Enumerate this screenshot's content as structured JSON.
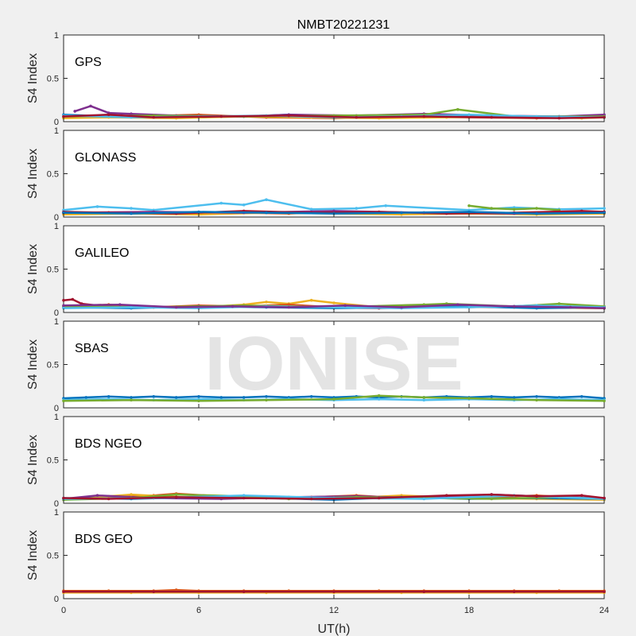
{
  "chart_data": {
    "type": "scatter",
    "title": "NMBT20221231",
    "xlabel": "UT(h)",
    "ylabel": "S4 Index",
    "xlim": [
      0,
      24
    ],
    "ylim": [
      0,
      1
    ],
    "xticks": [
      0,
      6,
      12,
      18,
      24
    ],
    "yticks": [
      0,
      0.5,
      1
    ],
    "ytick_labels": [
      "0",
      "0.5",
      "1"
    ],
    "grid": false,
    "watermark": "IONISE",
    "series_colors": [
      "#0072BD",
      "#D95319",
      "#EDB120",
      "#7E2F8E",
      "#77AC30",
      "#4DBEEE",
      "#A2142F"
    ],
    "panels": [
      {
        "label": "GPS",
        "tracks": [
          {
            "color": "#0072BD",
            "x": [
              0,
              2,
              4,
              6,
              8,
              10,
              12,
              14,
              16,
              18,
              20,
              22,
              24
            ],
            "y": [
              0.08,
              0.06,
              0.07,
              0.05,
              0.06,
              0.08,
              0.06,
              0.05,
              0.07,
              0.06,
              0.05,
              0.06,
              0.07
            ]
          },
          {
            "color": "#D95319",
            "x": [
              0,
              3,
              6,
              9,
              12,
              15,
              18,
              21,
              24
            ],
            "y": [
              0.05,
              0.06,
              0.08,
              0.05,
              0.04,
              0.06,
              0.05,
              0.04,
              0.05
            ]
          },
          {
            "color": "#EDB120",
            "x": [
              0,
              2,
              5,
              8,
              11,
              14,
              17,
              20,
              23,
              24
            ],
            "y": [
              0.04,
              0.05,
              0.04,
              0.06,
              0.05,
              0.04,
              0.05,
              0.06,
              0.04,
              0.05
            ]
          },
          {
            "color": "#7E2F8E",
            "x": [
              0.5,
              1.2,
              2,
              3,
              5,
              8,
              10,
              13,
              16,
              19,
              22,
              24
            ],
            "y": [
              0.12,
              0.18,
              0.1,
              0.09,
              0.07,
              0.06,
              0.08,
              0.07,
              0.09,
              0.07,
              0.06,
              0.08
            ]
          },
          {
            "color": "#77AC30",
            "x": [
              0,
              4,
              8,
              12,
              16,
              17.5,
              20,
              24
            ],
            "y": [
              0.06,
              0.07,
              0.06,
              0.07,
              0.08,
              0.14,
              0.06,
              0.06
            ]
          },
          {
            "color": "#4DBEEE",
            "x": [
              0,
              3,
              6,
              9,
              12,
              15,
              18,
              21,
              24
            ],
            "y": [
              0.07,
              0.05,
              0.06,
              0.07,
              0.05,
              0.06,
              0.08,
              0.06,
              0.05
            ]
          },
          {
            "color": "#A2142F",
            "x": [
              0,
              2,
              4,
              7,
              10,
              13,
              16,
              19,
              22,
              24
            ],
            "y": [
              0.06,
              0.08,
              0.05,
              0.06,
              0.07,
              0.05,
              0.06,
              0.05,
              0.04,
              0.05
            ]
          }
        ]
      },
      {
        "label": "GLONASS",
        "tracks": [
          {
            "color": "#4DBEEE",
            "x": [
              0,
              1.5,
              3,
              4,
              7,
              8,
              9,
              11,
              13,
              14.3,
              18,
              20,
              22,
              24
            ],
            "y": [
              0.08,
              0.12,
              0.1,
              0.08,
              0.16,
              0.14,
              0.2,
              0.09,
              0.1,
              0.13,
              0.08,
              0.11,
              0.09,
              0.1
            ]
          },
          {
            "color": "#77AC30",
            "x": [
              18,
              19,
              20,
              21,
              22
            ],
            "y": [
              0.13,
              0.1,
              0.09,
              0.1,
              0.08
            ]
          },
          {
            "color": "#D95319",
            "x": [
              0,
              2,
              4,
              6,
              8,
              10,
              12,
              14,
              16,
              18,
              20,
              22,
              24
            ],
            "y": [
              0.04,
              0.05,
              0.06,
              0.04,
              0.05,
              0.04,
              0.06,
              0.04,
              0.05,
              0.04,
              0.05,
              0.06,
              0.04
            ]
          },
          {
            "color": "#EDB120",
            "x": [
              0,
              3,
              6,
              9,
              12,
              15,
              18,
              21,
              24
            ],
            "y": [
              0.03,
              0.04,
              0.03,
              0.05,
              0.04,
              0.03,
              0.04,
              0.03,
              0.04
            ]
          },
          {
            "color": "#7E2F8E",
            "x": [
              0,
              4,
              8,
              12,
              16,
              20,
              24
            ],
            "y": [
              0.05,
              0.06,
              0.05,
              0.07,
              0.05,
              0.04,
              0.06
            ]
          },
          {
            "color": "#A2142F",
            "x": [
              0,
              2,
              5,
              8,
              11,
              14,
              17,
              20,
              23,
              24
            ],
            "y": [
              0.06,
              0.05,
              0.04,
              0.07,
              0.05,
              0.06,
              0.04,
              0.05,
              0.07,
              0.06
            ]
          },
          {
            "color": "#0072BD",
            "x": [
              0,
              3,
              6,
              9,
              12,
              15,
              18,
              21,
              24
            ],
            "y": [
              0.05,
              0.04,
              0.06,
              0.05,
              0.04,
              0.05,
              0.06,
              0.04,
              0.05
            ]
          }
        ]
      },
      {
        "label": "GALILEO",
        "tracks": [
          {
            "color": "#A2142F",
            "x": [
              0,
              0.4,
              0.8,
              1.5,
              3,
              5,
              8,
              11,
              14,
              17,
              20,
              24
            ],
            "y": [
              0.14,
              0.15,
              0.1,
              0.08,
              0.07,
              0.06,
              0.07,
              0.06,
              0.05,
              0.07,
              0.06,
              0.05
            ]
          },
          {
            "color": "#EDB120",
            "x": [
              6,
              8,
              9,
              10,
              11,
              12,
              14,
              16,
              18,
              20,
              24
            ],
            "y": [
              0.06,
              0.09,
              0.12,
              0.1,
              0.14,
              0.11,
              0.06,
              0.07,
              0.08,
              0.06,
              0.05
            ]
          },
          {
            "color": "#D95319",
            "x": [
              0,
              2,
              4,
              6,
              8,
              10,
              12,
              14,
              16,
              18,
              20,
              22,
              24
            ],
            "y": [
              0.07,
              0.09,
              0.06,
              0.08,
              0.07,
              0.09,
              0.06,
              0.07,
              0.08,
              0.06,
              0.07,
              0.06,
              0.05
            ]
          },
          {
            "color": "#0072BD",
            "x": [
              0,
              3,
              6,
              9,
              12,
              15,
              18,
              21,
              24
            ],
            "y": [
              0.06,
              0.05,
              0.07,
              0.06,
              0.05,
              0.06,
              0.07,
              0.05,
              0.06
            ]
          },
          {
            "color": "#77AC30",
            "x": [
              0,
              4,
              8,
              12,
              16,
              17,
              20,
              22,
              24
            ],
            "y": [
              0.07,
              0.06,
              0.08,
              0.06,
              0.09,
              0.1,
              0.07,
              0.1,
              0.07
            ]
          },
          {
            "color": "#4DBEEE",
            "x": [
              0,
              3,
              6,
              9,
              12,
              15,
              18,
              21,
              24
            ],
            "y": [
              0.05,
              0.06,
              0.05,
              0.07,
              0.06,
              0.05,
              0.06,
              0.08,
              0.06
            ]
          },
          {
            "color": "#7E2F8E",
            "x": [
              0,
              2.5,
              5,
              7.5,
              10,
              12.5,
              15,
              17.5,
              20,
              22.5,
              24
            ],
            "y": [
              0.08,
              0.09,
              0.06,
              0.07,
              0.06,
              0.08,
              0.06,
              0.09,
              0.07,
              0.06,
              0.05
            ]
          }
        ]
      },
      {
        "label": "SBAS",
        "tracks": [
          {
            "color": "#0072BD",
            "x": [
              0,
              1,
              2,
              3,
              4,
              5,
              6,
              7,
              8,
              9,
              10,
              11,
              12,
              13,
              14,
              15,
              16,
              17,
              18,
              19,
              20,
              21,
              22,
              23,
              24
            ],
            "y": [
              0.11,
              0.12,
              0.13,
              0.12,
              0.13,
              0.12,
              0.13,
              0.12,
              0.12,
              0.13,
              0.12,
              0.13,
              0.12,
              0.13,
              0.12,
              0.13,
              0.12,
              0.13,
              0.12,
              0.13,
              0.12,
              0.13,
              0.12,
              0.13,
              0.11
            ]
          },
          {
            "color": "#4DBEEE",
            "x": [
              0,
              2,
              4,
              6,
              8,
              10,
              12,
              14,
              16,
              18,
              20,
              22,
              24
            ],
            "y": [
              0.09,
              0.1,
              0.09,
              0.1,
              0.09,
              0.1,
              0.09,
              0.1,
              0.09,
              0.1,
              0.09,
              0.1,
              0.09
            ]
          },
          {
            "color": "#77AC30",
            "x": [
              0,
              3,
              6,
              9,
              12,
              14,
              16,
              18,
              21,
              24
            ],
            "y": [
              0.08,
              0.09,
              0.08,
              0.09,
              0.1,
              0.14,
              0.12,
              0.11,
              0.09,
              0.08
            ]
          }
        ]
      },
      {
        "label": "BDS NGEO",
        "tracks": [
          {
            "color": "#D95319",
            "x": [
              0,
              2,
              4,
              5,
              7,
              9,
              11,
              13,
              15,
              17,
              19,
              21,
              23,
              24
            ],
            "y": [
              0.05,
              0.07,
              0.09,
              0.11,
              0.08,
              0.06,
              0.07,
              0.09,
              0.06,
              0.08,
              0.07,
              0.09,
              0.06,
              0.05
            ]
          },
          {
            "color": "#EDB120",
            "x": [
              0,
              2,
              3,
              6,
              9,
              12,
              15,
              18,
              21,
              24
            ],
            "y": [
              0.04,
              0.08,
              0.1,
              0.06,
              0.07,
              0.05,
              0.09,
              0.06,
              0.05,
              0.04
            ]
          },
          {
            "color": "#0072BD",
            "x": [
              0,
              3,
              6,
              9,
              12,
              15,
              18,
              21,
              24
            ],
            "y": [
              0.06,
              0.05,
              0.07,
              0.06,
              0.04,
              0.07,
              0.05,
              0.06,
              0.05
            ]
          },
          {
            "color": "#7E2F8E",
            "x": [
              0,
              1.5,
              4,
              7,
              10,
              13,
              16,
              19,
              22,
              24
            ],
            "y": [
              0.05,
              0.09,
              0.06,
              0.05,
              0.07,
              0.08,
              0.06,
              0.1,
              0.07,
              0.06
            ]
          },
          {
            "color": "#77AC30",
            "x": [
              0,
              3,
              5,
              8,
              10,
              13,
              16,
              19,
              22,
              24
            ],
            "y": [
              0.04,
              0.06,
              0.1,
              0.08,
              0.05,
              0.07,
              0.06,
              0.05,
              0.07,
              0.05
            ]
          },
          {
            "color": "#4DBEEE",
            "x": [
              0,
              4,
              8,
              12,
              16,
              20,
              24
            ],
            "y": [
              0.05,
              0.06,
              0.09,
              0.06,
              0.05,
              0.09,
              0.05
            ]
          },
          {
            "color": "#A2142F",
            "x": [
              0,
              2,
              5,
              8,
              11,
              14,
              17,
              19,
              21,
              23,
              24
            ],
            "y": [
              0.06,
              0.05,
              0.07,
              0.06,
              0.05,
              0.06,
              0.09,
              0.1,
              0.08,
              0.09,
              0.06
            ]
          }
        ]
      },
      {
        "label": "BDS GEO",
        "tracks": [
          {
            "color": "#D95319",
            "x": [
              0,
              2,
              4,
              5,
              6,
              8,
              10,
              12,
              14,
              16,
              18,
              20,
              22,
              24
            ],
            "y": [
              0.09,
              0.09,
              0.09,
              0.1,
              0.09,
              0.09,
              0.09,
              0.09,
              0.09,
              0.09,
              0.09,
              0.09,
              0.09,
              0.09
            ]
          },
          {
            "color": "#EDB120",
            "x": [
              0,
              3,
              6,
              9,
              12,
              15,
              18,
              21,
              24
            ],
            "y": [
              0.07,
              0.07,
              0.07,
              0.07,
              0.07,
              0.07,
              0.07,
              0.07,
              0.07
            ]
          },
          {
            "color": "#A2142F",
            "x": [
              0,
              4,
              8,
              12,
              16,
              20,
              24
            ],
            "y": [
              0.08,
              0.08,
              0.08,
              0.08,
              0.08,
              0.08,
              0.08
            ]
          }
        ]
      }
    ]
  }
}
